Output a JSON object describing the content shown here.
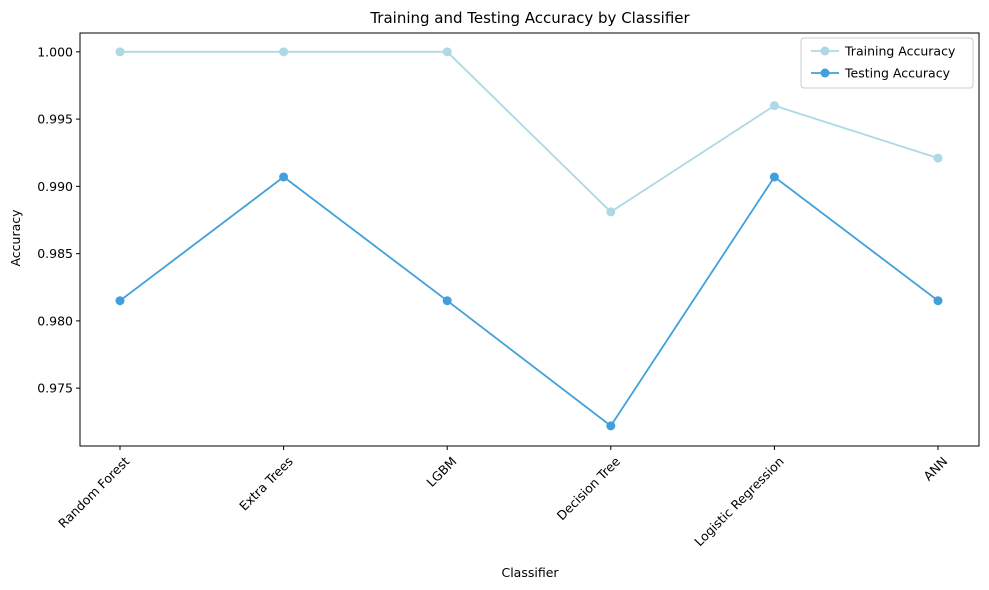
{
  "chart_data": {
    "type": "line",
    "title": "Training and Testing Accuracy by Classifier",
    "xlabel": "Classifier",
    "ylabel": "Accuracy",
    "categories": [
      "Random Forest",
      "Extra Trees",
      "LGBM",
      "Decision Tree",
      "Logistic Regression",
      "ANN"
    ],
    "ylim": [
      0.9707,
      1.0014
    ],
    "yticks": [
      "0.975",
      "0.980",
      "0.985",
      "0.990",
      "0.995",
      "1.000"
    ],
    "grid": false,
    "legend_position": "top-right",
    "series": [
      {
        "name": "Training Accuracy",
        "color": "#add8e6",
        "marker": "circle",
        "values": [
          1.0,
          1.0,
          1.0,
          0.9881,
          0.996,
          0.9921
        ]
      },
      {
        "name": "Testing Accuracy",
        "color": "#41a0dc",
        "marker": "circle",
        "values": [
          0.9815,
          0.9907,
          0.9815,
          0.9722,
          0.9907,
          0.9815
        ]
      }
    ]
  }
}
